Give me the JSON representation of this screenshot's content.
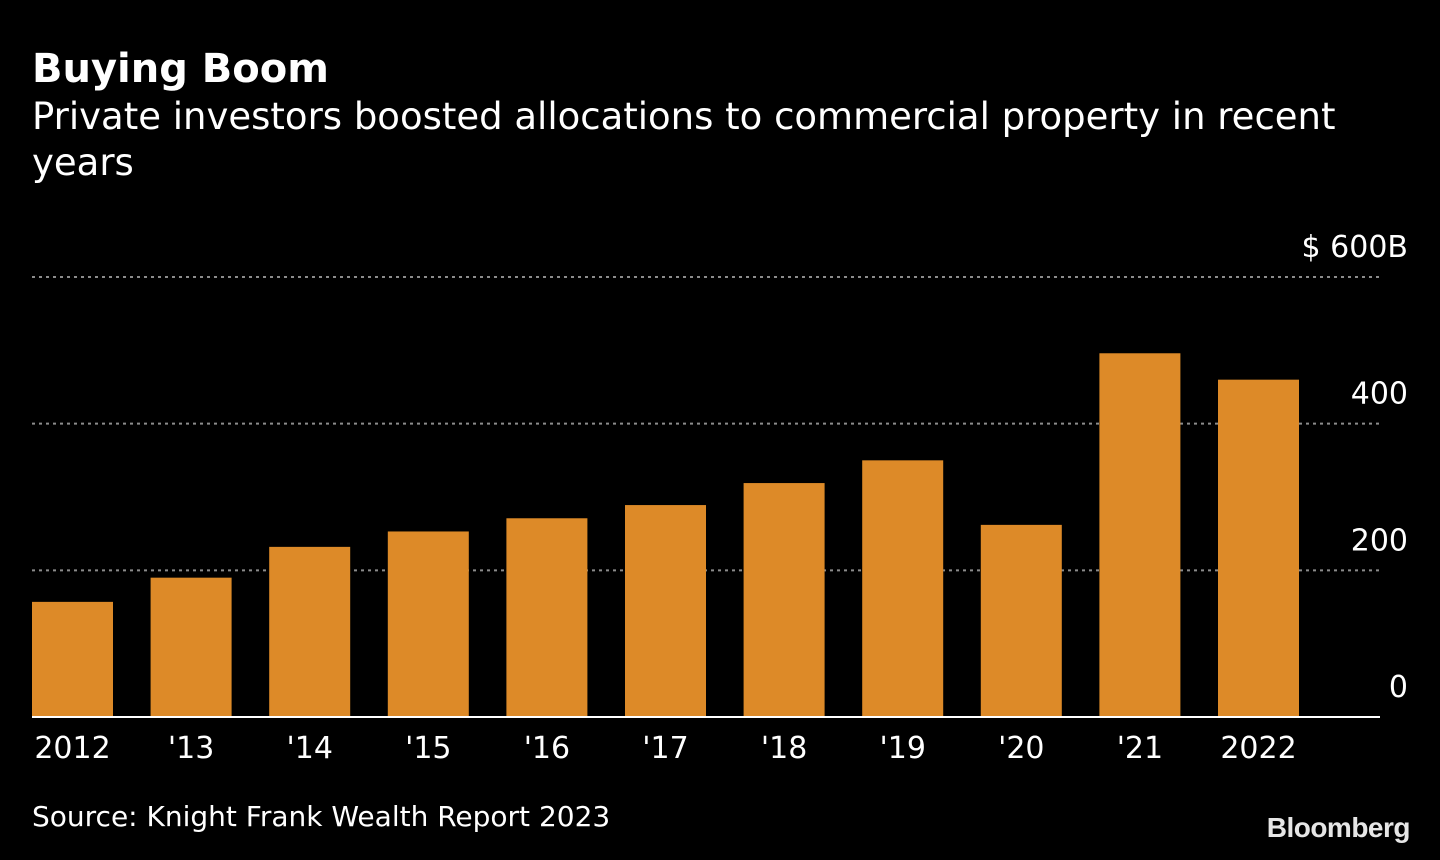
{
  "header": {
    "title": "Buying Boom",
    "subtitle": "Private investors boosted allocations to commercial property in recent years"
  },
  "footer": {
    "source": "Source: Knight Frank Wealth Report 2023",
    "brand": "Bloomberg"
  },
  "colors": {
    "background": "#000000",
    "bar": "#dd8a28",
    "gridline": "#8c8c8c",
    "text": "#ffffff"
  },
  "chart_data": {
    "type": "bar",
    "title": "Buying Boom",
    "subtitle": "Private investors boosted allocations to commercial property in recent years",
    "categories": [
      "2012",
      "'13",
      "'14",
      "'15",
      "'16",
      "'17",
      "'18",
      "'19",
      "'20",
      "'21",
      "2022"
    ],
    "values": [
      157,
      190,
      232,
      253,
      271,
      289,
      319,
      350,
      262,
      496,
      460
    ],
    "ylim": [
      0,
      600
    ],
    "yticks": [
      0,
      200,
      400,
      600
    ],
    "ytick_labels": [
      "0",
      "200",
      "400",
      "$ 600B"
    ],
    "y_axis_side": "right",
    "grid": true,
    "legend": "none",
    "xlabel": "",
    "ylabel": ""
  }
}
